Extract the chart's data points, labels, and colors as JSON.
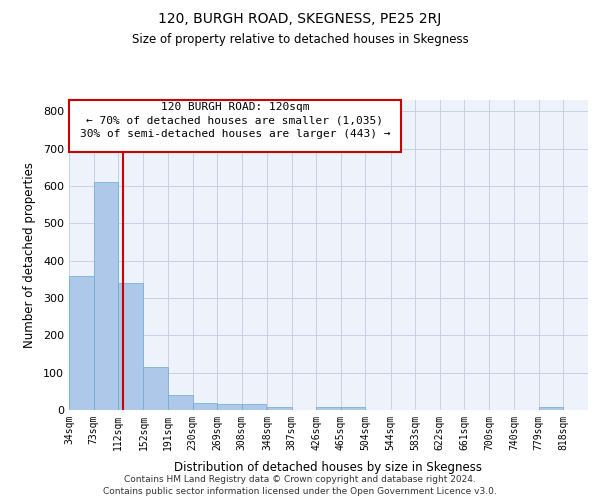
{
  "title": "120, BURGH ROAD, SKEGNESS, PE25 2RJ",
  "subtitle": "Size of property relative to detached houses in Skegness",
  "xlabel": "Distribution of detached houses by size in Skegness",
  "ylabel": "Number of detached properties",
  "bar_color": "#adc8e8",
  "bar_edge_color": "#6aaad4",
  "background_color": "#edf2fb",
  "grid_color": "#c8d0e8",
  "bins": [
    "34sqm",
    "73sqm",
    "112sqm",
    "152sqm",
    "191sqm",
    "230sqm",
    "269sqm",
    "308sqm",
    "348sqm",
    "387sqm",
    "426sqm",
    "465sqm",
    "504sqm",
    "544sqm",
    "583sqm",
    "622sqm",
    "661sqm",
    "700sqm",
    "740sqm",
    "779sqm",
    "818sqm"
  ],
  "values": [
    360,
    610,
    340,
    115,
    40,
    20,
    17,
    15,
    8,
    0,
    8,
    8,
    0,
    0,
    0,
    0,
    0,
    0,
    0,
    7,
    0
  ],
  "bin_width": 39,
  "bin_starts": [
    34,
    73,
    112,
    152,
    191,
    230,
    269,
    308,
    348,
    387,
    426,
    465,
    504,
    544,
    583,
    622,
    661,
    700,
    740,
    779,
    818
  ],
  "red_line_x": 120,
  "ylim": [
    0,
    830
  ],
  "yticks": [
    0,
    100,
    200,
    300,
    400,
    500,
    600,
    700,
    800
  ],
  "annotation_text_line1": "120 BURGH ROAD: 120sqm",
  "annotation_text_line2": "← 70% of detached houses are smaller (1,035)",
  "annotation_text_line3": "30% of semi-detached houses are larger (443) →",
  "annotation_box_color": "white",
  "annotation_box_edge": "#cc0000",
  "footer1": "Contains HM Land Registry data © Crown copyright and database right 2024.",
  "footer2": "Contains public sector information licensed under the Open Government Licence v3.0."
}
